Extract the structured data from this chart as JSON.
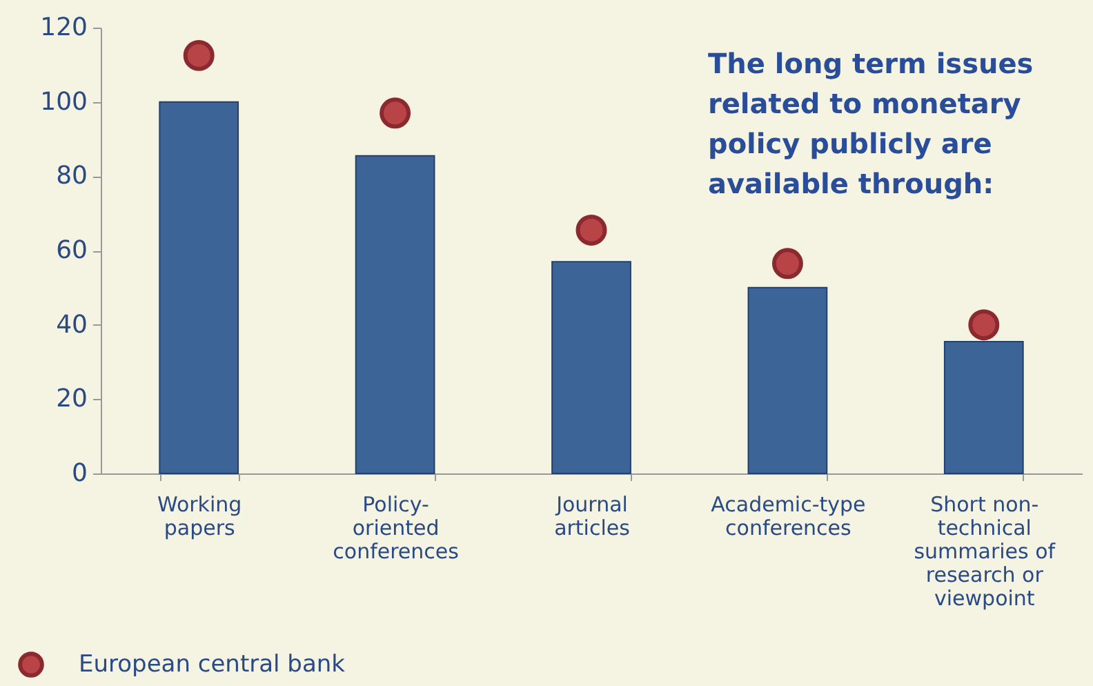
{
  "chart_data": {
    "type": "bar",
    "categories": [
      "Working papers",
      "Policy-oriented conferences",
      "Journal articles",
      "Academic-type conferences",
      "Short non-technical summaries of research or viewpoint"
    ],
    "series": [
      {
        "color": "#3c6496",
        "values": [
          100,
          85.5,
          57,
          50,
          35.5
        ]
      },
      {
        "type": "scatter",
        "name": "European central bank",
        "color": "#b84448",
        "values": [
          112.5,
          97,
          65.5,
          56.5,
          40
        ]
      }
    ],
    "ylim": [
      0,
      120
    ],
    "yticks": [
      0,
      20,
      40,
      60,
      80,
      100,
      120
    ],
    "grid": false,
    "legend": "bottom left",
    "marker": "circle",
    "annotations": [
      "The long term issues related to monetary policy publicly are available through:"
    ]
  }
}
